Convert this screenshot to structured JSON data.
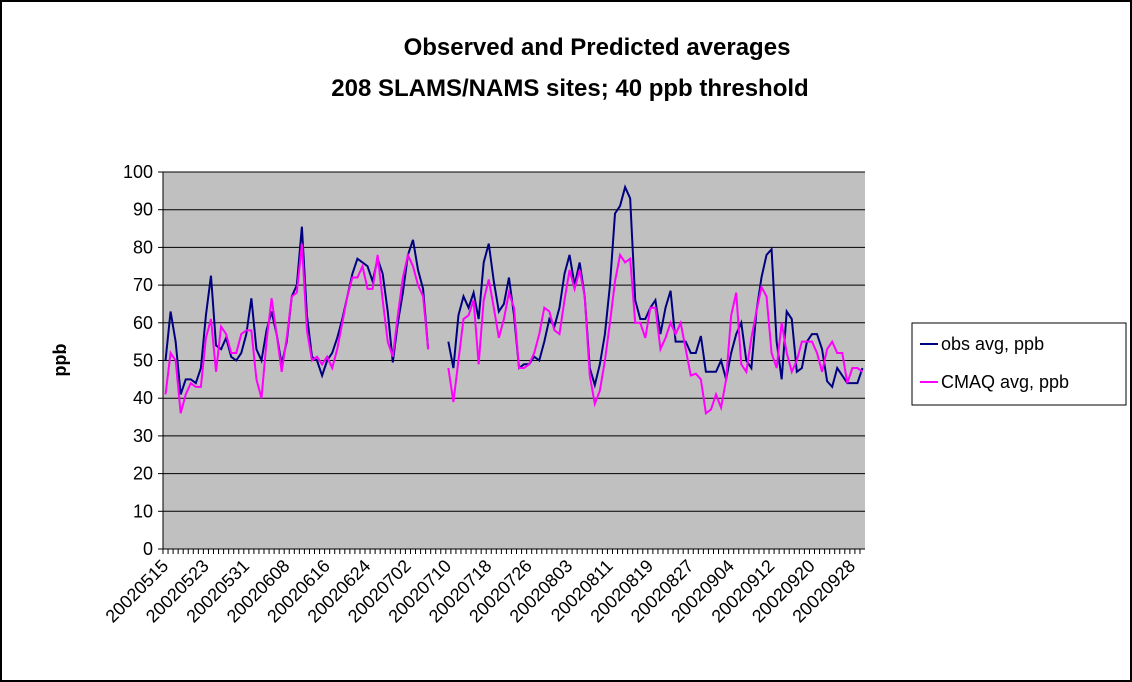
{
  "chart_data": {
    "type": "line",
    "title": "Observed and Predicted averages",
    "subtitle": "208 SLAMS/NAMS sites; 40 ppb threshold",
    "y_label": "ppb",
    "categories": [
      "20020515",
      null,
      null,
      null,
      null,
      null,
      null,
      null,
      "20020523",
      null,
      null,
      null,
      null,
      null,
      null,
      null,
      "20020531",
      null,
      null,
      null,
      null,
      null,
      null,
      null,
      "20020608",
      null,
      null,
      null,
      null,
      null,
      null,
      null,
      "20020616",
      null,
      null,
      null,
      null,
      null,
      null,
      null,
      "20020624",
      null,
      null,
      null,
      null,
      null,
      null,
      null,
      "20020702",
      null,
      null,
      null,
      null,
      null,
      null,
      null,
      "20020710",
      null,
      null,
      null,
      null,
      null,
      null,
      null,
      "20020718",
      null,
      null,
      null,
      null,
      null,
      null,
      null,
      "20020726",
      null,
      null,
      null,
      null,
      null,
      null,
      null,
      "20020803",
      null,
      null,
      null,
      null,
      null,
      null,
      null,
      "20020811",
      null,
      null,
      null,
      null,
      null,
      null,
      null,
      "20020819",
      null,
      null,
      null,
      null,
      null,
      null,
      null,
      "20020827",
      null,
      null,
      null,
      null,
      null,
      null,
      null,
      "20020904",
      null,
      null,
      null,
      null,
      null,
      null,
      null,
      "20020912",
      null,
      null,
      null,
      null,
      null,
      null,
      null,
      "20020920",
      null,
      null,
      null,
      null,
      null,
      null,
      null,
      "20020928",
      null,
      null
    ],
    "series": [
      {
        "name": "obs avg, ppb",
        "color": "#000080",
        "values": [
          50,
          63,
          55,
          41,
          45,
          45,
          44,
          48,
          62,
          72.5,
          54,
          53,
          56,
          51,
          50,
          52,
          57,
          66.5,
          53,
          50,
          58,
          63,
          57,
          49,
          55,
          67,
          70,
          85.5,
          62,
          51,
          50,
          46,
          50,
          52,
          56,
          61,
          67,
          73,
          77,
          76,
          75,
          71,
          77,
          73,
          63,
          49.5,
          60,
          68,
          78,
          82,
          74,
          69,
          53,
          null,
          null,
          null,
          55,
          48,
          62,
          67,
          64,
          68,
          61,
          76,
          81,
          71,
          63,
          65,
          72,
          62,
          48,
          49,
          49,
          51,
          50,
          55,
          61,
          59,
          64,
          73,
          78,
          70,
          76,
          67,
          48,
          43.5,
          49,
          57,
          70,
          89,
          91,
          96,
          93,
          66,
          61,
          61,
          64,
          66,
          57,
          64,
          68.5,
          55,
          55,
          55,
          52,
          52,
          56.5,
          47,
          47,
          47,
          50,
          45,
          52,
          57,
          60,
          50,
          48,
          63,
          72,
          78,
          79.5,
          55,
          45,
          63,
          61,
          47,
          48,
          55,
          57,
          57,
          53,
          44.5,
          43,
          48,
          46,
          44,
          44,
          44,
          48
        ]
      },
      {
        "name": "CMAQ avg, ppb",
        "color": "#FF00FF",
        "values": [
          41,
          52,
          50,
          36,
          41,
          44,
          43,
          43,
          56,
          61,
          47,
          59,
          57,
          52,
          52,
          57,
          58,
          58,
          45,
          40,
          55,
          66.5,
          57,
          47,
          56,
          67,
          68,
          81,
          58,
          50,
          51,
          49,
          51,
          48,
          53,
          60,
          67,
          72,
          72,
          75,
          69,
          69,
          78,
          66,
          55,
          51,
          62,
          72,
          78,
          75,
          70,
          67,
          53,
          null,
          null,
          null,
          48,
          39,
          50,
          61,
          62,
          66,
          49,
          66,
          71.5,
          64,
          56,
          61,
          68,
          64,
          48,
          48,
          49,
          52,
          57,
          64,
          63,
          58,
          57,
          66,
          74,
          69,
          74,
          67,
          46,
          38.5,
          42,
          50,
          60,
          71,
          78,
          76,
          77,
          60,
          60,
          56,
          64,
          64,
          53,
          56,
          60,
          57,
          60,
          53,
          46,
          46.5,
          45,
          36,
          37,
          41,
          37.5,
          45,
          62,
          68,
          49,
          47,
          56,
          63,
          69.5,
          67,
          52,
          48,
          60,
          52,
          47,
          50,
          55,
          55,
          55,
          52,
          47,
          53,
          55,
          52,
          52,
          44,
          48,
          48,
          47
        ]
      }
    ],
    "ylim": [
      0,
      100
    ],
    "yticks": [
      0,
      10,
      20,
      30,
      40,
      50,
      60,
      70,
      80,
      90,
      100
    ],
    "grid": true,
    "legend": "right"
  }
}
